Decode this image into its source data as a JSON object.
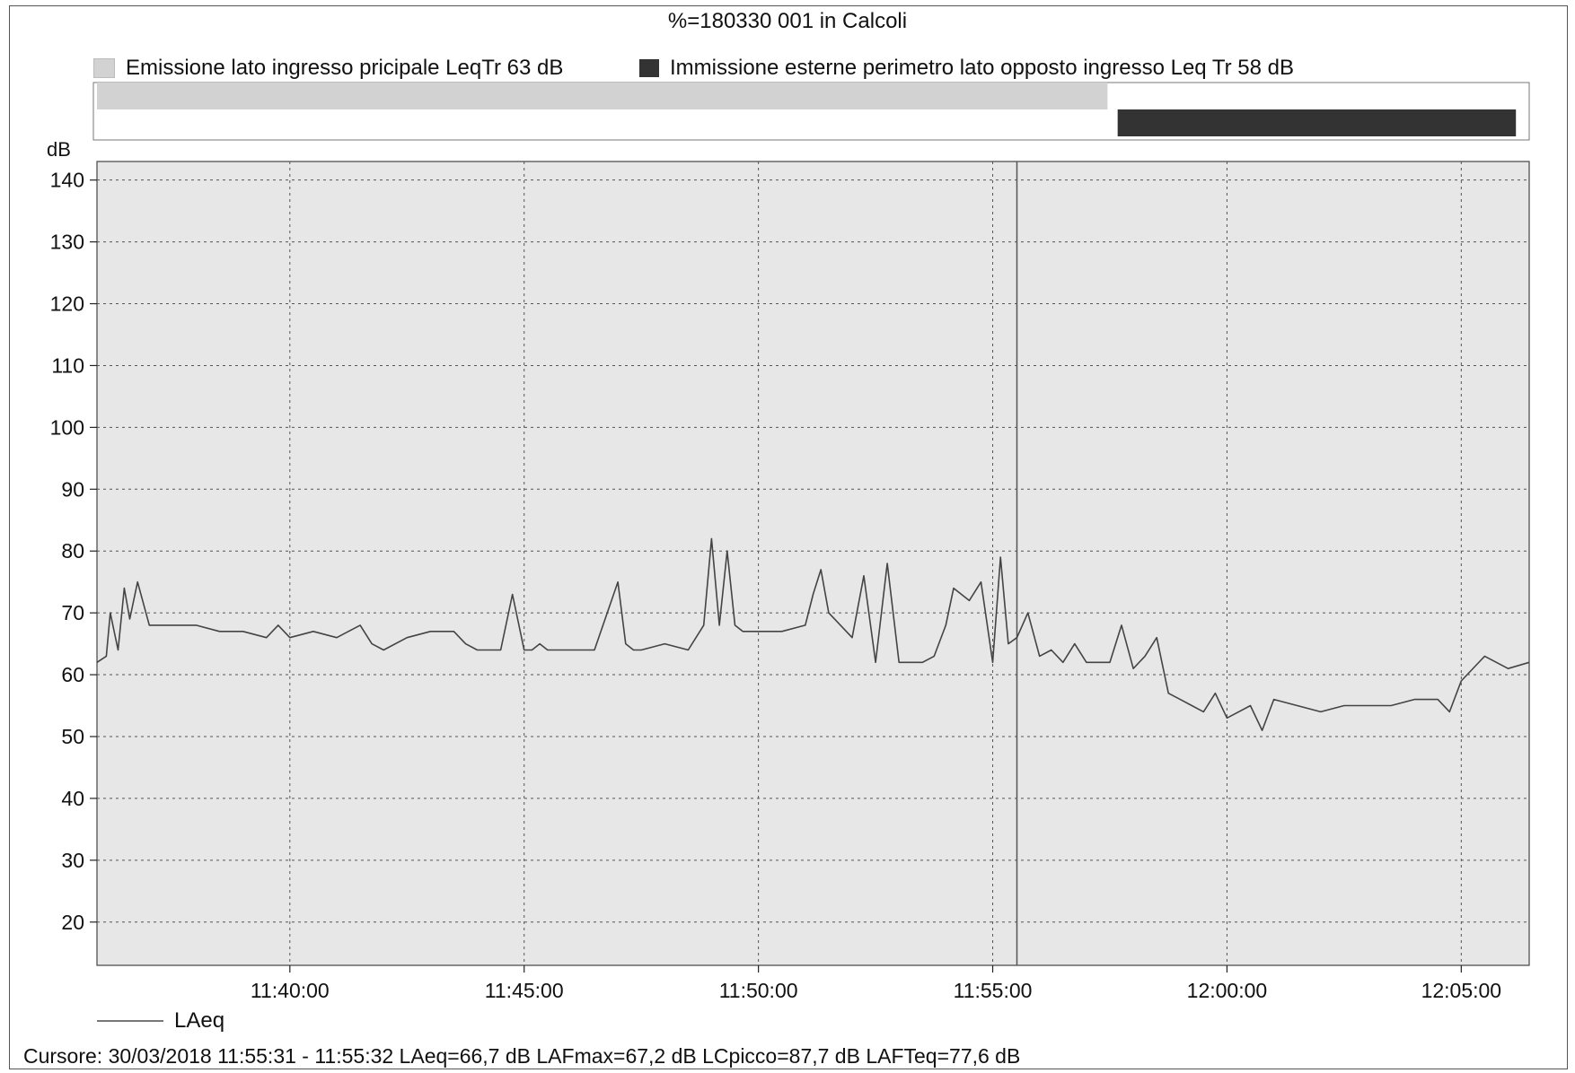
{
  "title": "%=180330 001 in Calcoli",
  "legend": [
    {
      "label": "Emissione lato ingresso pricipale LeqTr 63 dB",
      "color": "#d2d2d2"
    },
    {
      "label": "Immissione esterne perimetro lato opposto ingresso Leq Tr 58 dB",
      "color": "#333333"
    }
  ],
  "series_legend": "LAeq",
  "cursor_text": "Cursore: 30/03/2018 11:55:31 - 11:55:32  LAeq=66,7 dB  LAFmax=67,2 dB  LCpicco=87,7 dB  LAFTeq=77,6 dB",
  "chart_data": {
    "type": "line",
    "ylabel": "dB",
    "xlabel": "",
    "ylim": [
      13,
      143
    ],
    "xlim": [
      "11:35:53",
      "12:06:27"
    ],
    "y_ticks": [
      20,
      30,
      40,
      50,
      60,
      70,
      80,
      90,
      100,
      110,
      120,
      130,
      140
    ],
    "x_ticks": [
      "11:40:00",
      "11:45:00",
      "11:50:00",
      "11:55:00",
      "12:00:00",
      "12:05:00"
    ],
    "grid": true,
    "cursor_time": "11:55:31",
    "period_bars": [
      {
        "label": "Emissione lato ingresso pricipale LeqTr 63 dB",
        "start": "11:35:53",
        "end": "11:57:27",
        "color": "#d2d2d2"
      },
      {
        "label": "Immissione esterne perimetro lato opposto ingresso Leq Tr 58 dB",
        "start": "11:57:40",
        "end": "12:06:10",
        "color": "#333333"
      }
    ],
    "series": [
      {
        "name": "LAeq",
        "color": "#444444",
        "x": [
          "11:35:53",
          "11:36:05",
          "11:36:10",
          "11:36:20",
          "11:36:28",
          "11:36:35",
          "11:36:45",
          "11:37:00",
          "11:37:30",
          "11:38:00",
          "11:38:30",
          "11:39:00",
          "11:39:30",
          "11:39:45",
          "11:40:00",
          "11:40:30",
          "11:41:00",
          "11:41:30",
          "11:41:45",
          "11:42:00",
          "11:42:30",
          "11:43:00",
          "11:43:30",
          "11:43:45",
          "11:44:00",
          "11:44:30",
          "11:44:45",
          "11:45:00",
          "11:45:10",
          "11:45:20",
          "11:45:30",
          "11:46:00",
          "11:46:30",
          "11:47:00",
          "11:47:10",
          "11:47:20",
          "11:47:30",
          "11:48:00",
          "11:48:30",
          "11:48:50",
          "11:49:00",
          "11:49:10",
          "11:49:20",
          "11:49:30",
          "11:49:40",
          "11:50:00",
          "11:50:30",
          "11:51:00",
          "11:51:10",
          "11:51:20",
          "11:51:30",
          "11:52:00",
          "11:52:15",
          "11:52:30",
          "11:52:45",
          "11:53:00",
          "11:53:30",
          "11:53:45",
          "11:54:00",
          "11:54:10",
          "11:54:30",
          "11:54:45",
          "11:55:00",
          "11:55:10",
          "11:55:20",
          "11:55:31",
          "11:55:45",
          "11:56:00",
          "11:56:15",
          "11:56:30",
          "11:56:45",
          "11:57:00",
          "11:57:15",
          "11:57:30",
          "11:57:45",
          "11:58:00",
          "11:58:15",
          "11:58:30",
          "11:58:45",
          "11:59:00",
          "11:59:15",
          "11:59:30",
          "11:59:45",
          "12:00:00",
          "12:00:15",
          "12:00:30",
          "12:00:45",
          "12:01:00",
          "12:01:30",
          "12:02:00",
          "12:02:30",
          "12:03:00",
          "12:03:30",
          "12:04:00",
          "12:04:30",
          "12:04:45",
          "12:05:00",
          "12:05:30",
          "12:06:00",
          "12:06:27"
        ],
        "values": [
          62,
          63,
          70,
          64,
          74,
          69,
          75,
          68,
          68,
          68,
          67,
          67,
          66,
          68,
          66,
          67,
          66,
          68,
          65,
          64,
          66,
          67,
          67,
          65,
          64,
          64,
          73,
          64,
          64,
          65,
          64,
          64,
          64,
          75,
          65,
          64,
          64,
          65,
          64,
          68,
          82,
          68,
          80,
          68,
          67,
          67,
          67,
          68,
          73,
          77,
          70,
          66,
          76,
          62,
          78,
          62,
          62,
          63,
          68,
          74,
          72,
          75,
          62,
          79,
          65,
          66,
          70,
          63,
          64,
          62,
          65,
          62,
          62,
          62,
          68,
          61,
          63,
          66,
          57,
          56,
          55,
          54,
          57,
          53,
          54,
          55,
          51,
          56,
          55,
          54,
          55,
          55,
          55,
          56,
          56,
          54,
          59,
          63,
          61,
          62
        ]
      }
    ]
  }
}
